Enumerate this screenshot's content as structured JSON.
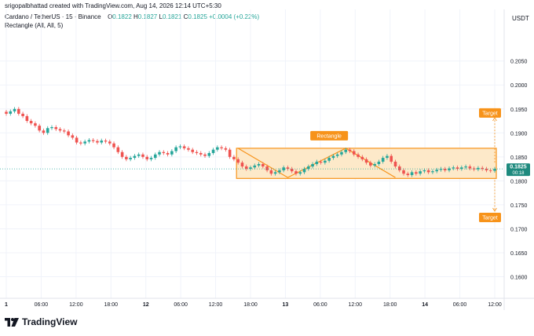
{
  "header": {
    "credit": "srigopalbhattad created with TradingView.com, Aug 14, 2026 12:14 UTC+5:30"
  },
  "symbol": {
    "name": "Cardano / TetherUS · 15 · Binance",
    "open_label": "O",
    "open": "0.1822",
    "high_label": "H",
    "high": "0.1827",
    "low_label": "L",
    "low": "0.1821",
    "close_label": "C",
    "close": "0.1825",
    "change": "+0.0004 (+0.22%)"
  },
  "indicator": "Rectangle (All, All, 5)",
  "currency": "USDT",
  "price_badge": {
    "price": "0.1825",
    "countdown": "00:18"
  },
  "annotations": {
    "rectangle_label": "Rectangle",
    "target_up_label": "Target",
    "target_down_label": "Target"
  },
  "brand": "TradingView",
  "colors": {
    "up": "#26a69a",
    "down": "#ef5350",
    "accent": "#f7931a",
    "rect_fill": "#fde9c9",
    "price_line": "#26a69a",
    "badge": "#1e8a7e"
  },
  "chart_data": {
    "type": "candlestick",
    "y_ticks": [
      "0.2050",
      "0.2000",
      "0.1950",
      "0.1900",
      "0.1850",
      "0.1800",
      "0.1750",
      "0.1700",
      "0.1650",
      "0.1600"
    ],
    "x_ticks": [
      "1",
      "06:00",
      "12:00",
      "18:00",
      "12",
      "06:00",
      "12:00",
      "18:00",
      "13",
      "06:00",
      "12:00",
      "18:00",
      "14",
      "06:00",
      "12:00"
    ],
    "ylim": [
      0.1555,
      0.2115
    ],
    "close_series": [
      0.194,
      0.1945,
      0.195,
      0.194,
      0.1935,
      0.1925,
      0.192,
      0.1915,
      0.1905,
      0.19,
      0.191,
      0.1912,
      0.1908,
      0.1905,
      0.1903,
      0.1895,
      0.189,
      0.188,
      0.1878,
      0.1882,
      0.1885,
      0.1883,
      0.188,
      0.1884,
      0.1882,
      0.1878,
      0.187,
      0.186,
      0.185,
      0.1845,
      0.1848,
      0.1852,
      0.1855,
      0.185,
      0.1845,
      0.1848,
      0.1855,
      0.186,
      0.1858,
      0.1855,
      0.1862,
      0.187,
      0.1872,
      0.1868,
      0.1865,
      0.186,
      0.1858,
      0.1855,
      0.1852,
      0.1858,
      0.1865,
      0.187,
      0.1868,
      0.1865,
      0.185,
      0.1845,
      0.1838,
      0.183,
      0.1825,
      0.1828,
      0.1832,
      0.1835,
      0.183,
      0.1822,
      0.1815,
      0.1818,
      0.1822,
      0.1828,
      0.1825,
      0.182,
      0.1815,
      0.1818,
      0.1825,
      0.183,
      0.1835,
      0.184,
      0.1838,
      0.1842,
      0.1848,
      0.1852,
      0.1855,
      0.186,
      0.1865,
      0.1862,
      0.1855,
      0.185,
      0.1845,
      0.1838,
      0.1832,
      0.1835,
      0.184,
      0.1848,
      0.1852,
      0.184,
      0.183,
      0.1822,
      0.1815,
      0.1812,
      0.1818,
      0.1815,
      0.182,
      0.1822,
      0.1818,
      0.182,
      0.1823,
      0.1825,
      0.1822,
      0.1826,
      0.1828,
      0.1825,
      0.1828,
      0.183,
      0.1826,
      0.1824,
      0.1827,
      0.1825,
      0.1822,
      0.1821,
      0.1825
    ],
    "rectangle_range": [
      0.1805,
      0.1868
    ],
    "target_up": 0.1935,
    "target_down": 0.174,
    "last_price": 0.1825
  }
}
